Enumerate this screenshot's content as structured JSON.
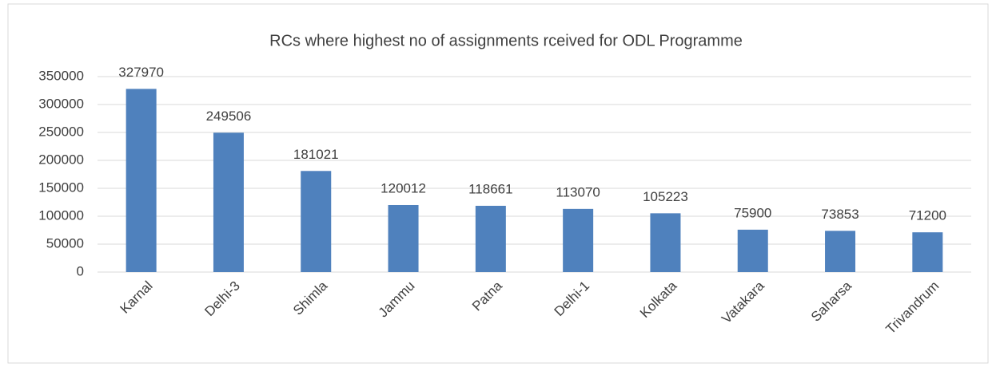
{
  "chart_data": {
    "type": "bar",
    "title": "RCs where highest no of assignments rceived for ODL Programme",
    "categories": [
      "Karnal",
      "Delhi-3",
      "Shimla",
      "Jammu",
      "Patna",
      "Delhi-1",
      "Kolkata",
      "Vatakara",
      "Saharsa",
      "Trivandrum"
    ],
    "values": [
      327970,
      249506,
      181021,
      120012,
      118661,
      113070,
      105223,
      75900,
      73853,
      71200
    ],
    "color": "#4f81bd",
    "ylim": [
      0,
      350000
    ],
    "yticks": [
      0,
      50000,
      100000,
      150000,
      200000,
      250000,
      300000,
      350000
    ],
    "grid": true
  }
}
